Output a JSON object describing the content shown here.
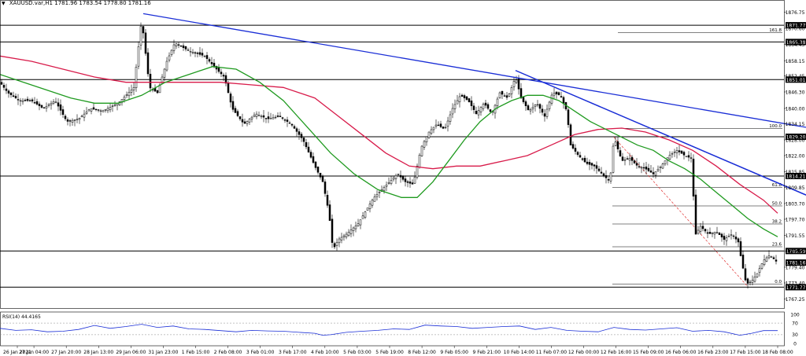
{
  "header": {
    "symbol": "XAUUSD.var,H1",
    "ohlc": "1781.96 1783.54 1778.80 1781.16"
  },
  "chart_data": {
    "type": "candlestick",
    "ylim": [
      1765.0,
      1879.0
    ],
    "price_ticks": [
      "1876.75",
      "1870.60",
      "1864.45",
      "1858.15",
      "1852.45",
      "1846.30",
      "1840.00",
      "1834.15",
      "1828.00",
      "1822.00",
      "1815.85",
      "1809.85",
      "1803.70",
      "1797.70",
      "1791.55",
      "1785.59",
      "1779.40",
      "1773.40",
      "1767.25"
    ],
    "time_labels": [
      "26 Jan 2021",
      "27 Jan 04:00",
      "27 Jan 20:00",
      "28 Jan 13:00",
      "29 Jan 06:00",
      "31 Jan 23:00",
      "1 Feb 15:00",
      "2 Feb 08:00",
      "3 Feb 01:00",
      "3 Feb 17:00",
      "4 Feb 10:00",
      "5 Feb 03:00",
      "5 Feb 19:00",
      "8 Feb 12:00",
      "9 Feb 05:00",
      "9 Feb 21:00",
      "10 Feb 14:00",
      "11 Feb 07:00",
      "12 Feb 00:00",
      "12 Feb 16:00",
      "15 Feb 09:00",
      "16 Feb 06:00",
      "16 Feb 23:00",
      "17 Feb 15:00",
      "18 Feb 08:00"
    ],
    "levels": [
      {
        "label": "1871.77",
        "price": 1871.77
      },
      {
        "label": "1865.38",
        "price": 1865.38
      },
      {
        "label": "1851.01",
        "price": 1851.01
      },
      {
        "label": "1829.20",
        "price": 1829.2
      },
      {
        "label": "1814.21",
        "price": 1814.21
      },
      {
        "label": "1785.59",
        "price": 1785.59
      },
      {
        "label": "1771.77",
        "price": 1771.77
      }
    ],
    "current_price_label": "1781.16",
    "current_price": 1781.16,
    "fibonacci": [
      {
        "label": "161.8",
        "price": 1868.9
      },
      {
        "label": "100.0",
        "price": 1832.4
      },
      {
        "label": "61.8",
        "price": 1809.8
      },
      {
        "label": "50.0",
        "price": 1802.8
      },
      {
        "label": "38.2",
        "price": 1795.9
      },
      {
        "label": "23.6",
        "price": 1787.2
      },
      {
        "label": "0.0",
        "price": 1773.0
      }
    ],
    "close_path": [
      [
        0,
        1850
      ],
      [
        10,
        1846
      ],
      [
        25,
        1843
      ],
      [
        40,
        1843
      ],
      [
        55,
        1840
      ],
      [
        70,
        1843
      ],
      [
        85,
        1835
      ],
      [
        100,
        1836
      ],
      [
        115,
        1840
      ],
      [
        130,
        1839
      ],
      [
        150,
        1842
      ],
      [
        170,
        1848
      ],
      [
        180,
        1874
      ],
      [
        190,
        1848
      ],
      [
        200,
        1846
      ],
      [
        212,
        1858
      ],
      [
        222,
        1865
      ],
      [
        240,
        1862
      ],
      [
        260,
        1860
      ],
      [
        275,
        1855
      ],
      [
        285,
        1852
      ],
      [
        295,
        1840
      ],
      [
        310,
        1834
      ],
      [
        325,
        1838
      ],
      [
        340,
        1836
      ],
      [
        355,
        1837
      ],
      [
        370,
        1834
      ],
      [
        385,
        1828
      ],
      [
        400,
        1818
      ],
      [
        410,
        1812
      ],
      [
        418,
        1800
      ],
      [
        423,
        1786
      ],
      [
        430,
        1790
      ],
      [
        440,
        1792
      ],
      [
        455,
        1796
      ],
      [
        465,
        1801
      ],
      [
        475,
        1806
      ],
      [
        485,
        1809
      ],
      [
        495,
        1812
      ],
      [
        505,
        1815
      ],
      [
        515,
        1812
      ],
      [
        525,
        1811
      ],
      [
        535,
        1825
      ],
      [
        545,
        1831
      ],
      [
        555,
        1834
      ],
      [
        565,
        1832
      ],
      [
        575,
        1840
      ],
      [
        585,
        1845
      ],
      [
        595,
        1843
      ],
      [
        605,
        1838
      ],
      [
        615,
        1842
      ],
      [
        625,
        1838
      ],
      [
        635,
        1846
      ],
      [
        645,
        1844
      ],
      [
        655,
        1852
      ],
      [
        662,
        1844
      ],
      [
        672,
        1839
      ],
      [
        682,
        1842
      ],
      [
        692,
        1837
      ],
      [
        702,
        1846
      ],
      [
        712,
        1845
      ],
      [
        720,
        1839
      ],
      [
        725,
        1826
      ],
      [
        735,
        1822
      ],
      [
        745,
        1819
      ],
      [
        755,
        1818
      ],
      [
        765,
        1815
      ],
      [
        775,
        1812
      ],
      [
        780,
        1829
      ],
      [
        790,
        1820
      ],
      [
        800,
        1821
      ],
      [
        810,
        1818
      ],
      [
        820,
        1817
      ],
      [
        830,
        1815
      ],
      [
        840,
        1818
      ],
      [
        850,
        1822
      ],
      [
        860,
        1824
      ],
      [
        870,
        1822
      ],
      [
        878,
        1821
      ],
      [
        884,
        1792
      ],
      [
        890,
        1795
      ],
      [
        900,
        1792
      ],
      [
        910,
        1793
      ],
      [
        920,
        1790
      ],
      [
        930,
        1792
      ],
      [
        938,
        1789
      ],
      [
        942,
        1782
      ],
      [
        948,
        1773
      ],
      [
        955,
        1774
      ],
      [
        962,
        1777
      ],
      [
        970,
        1782
      ],
      [
        978,
        1784
      ],
      [
        985,
        1782
      ],
      [
        988,
        1781
      ]
    ],
    "ma_red": [
      [
        0,
        1860
      ],
      [
        40,
        1858
      ],
      [
        80,
        1855
      ],
      [
        120,
        1852
      ],
      [
        160,
        1850
      ],
      [
        200,
        1850
      ],
      [
        240,
        1850
      ],
      [
        280,
        1850
      ],
      [
        320,
        1849
      ],
      [
        360,
        1848
      ],
      [
        400,
        1844
      ],
      [
        430,
        1837
      ],
      [
        460,
        1830
      ],
      [
        490,
        1823
      ],
      [
        520,
        1818
      ],
      [
        550,
        1817
      ],
      [
        580,
        1818
      ],
      [
        610,
        1818
      ],
      [
        640,
        1820
      ],
      [
        670,
        1822
      ],
      [
        700,
        1826
      ],
      [
        730,
        1830
      ],
      [
        760,
        1832
      ],
      [
        790,
        1832.5
      ],
      [
        820,
        1831
      ],
      [
        850,
        1828
      ],
      [
        880,
        1824
      ],
      [
        910,
        1818
      ],
      [
        940,
        1811
      ],
      [
        970,
        1805
      ],
      [
        988,
        1800
      ]
    ],
    "ma_green": [
      [
        0,
        1853
      ],
      [
        30,
        1850
      ],
      [
        60,
        1847
      ],
      [
        90,
        1844
      ],
      [
        120,
        1842
      ],
      [
        150,
        1842
      ],
      [
        180,
        1845
      ],
      [
        210,
        1850
      ],
      [
        240,
        1853
      ],
      [
        270,
        1856
      ],
      [
        300,
        1855
      ],
      [
        330,
        1850
      ],
      [
        360,
        1843
      ],
      [
        390,
        1833
      ],
      [
        420,
        1823
      ],
      [
        450,
        1815
      ],
      [
        480,
        1809
      ],
      [
        510,
        1806
      ],
      [
        530,
        1806
      ],
      [
        550,
        1812
      ],
      [
        570,
        1820
      ],
      [
        590,
        1828
      ],
      [
        610,
        1835
      ],
      [
        630,
        1840
      ],
      [
        650,
        1843
      ],
      [
        670,
        1845
      ],
      [
        690,
        1845
      ],
      [
        710,
        1843
      ],
      [
        730,
        1839
      ],
      [
        750,
        1835
      ],
      [
        770,
        1832
      ],
      [
        790,
        1829
      ],
      [
        810,
        1826
      ],
      [
        830,
        1824
      ],
      [
        850,
        1820
      ],
      [
        870,
        1817
      ],
      [
        890,
        1813
      ],
      [
        910,
        1808
      ],
      [
        930,
        1803
      ],
      [
        950,
        1798
      ],
      [
        970,
        1794
      ],
      [
        988,
        1791
      ]
    ],
    "trendlines": [
      {
        "from": [
          182,
          1876.2
        ],
        "to": [
          1024,
          1832.8
        ]
      },
      {
        "from": [
          655,
          1854.5
        ],
        "to": [
          1024,
          1806.9
        ]
      },
      {
        "from": [
          655,
          1854.5
        ],
        "to": [
          1024,
          1807.0
        ]
      }
    ],
    "fib_dashed": {
      "from": [
        780,
        1829
      ],
      "to": [
        950,
        1772
      ]
    },
    "rsi": {
      "label": "RSI(14) 44.4165",
      "value": 44.4165,
      "ticks": [
        "100",
        "70",
        "30",
        "0"
      ],
      "path": [
        [
          0,
          52
        ],
        [
          20,
          45
        ],
        [
          40,
          47
        ],
        [
          60,
          40
        ],
        [
          80,
          42
        ],
        [
          100,
          48
        ],
        [
          120,
          62
        ],
        [
          140,
          52
        ],
        [
          160,
          58
        ],
        [
          180,
          66
        ],
        [
          200,
          55
        ],
        [
          220,
          60
        ],
        [
          240,
          50
        ],
        [
          260,
          48
        ],
        [
          280,
          44
        ],
        [
          300,
          40
        ],
        [
          320,
          45
        ],
        [
          340,
          43
        ],
        [
          360,
          42
        ],
        [
          380,
          38
        ],
        [
          400,
          35
        ],
        [
          410,
          28
        ],
        [
          420,
          30
        ],
        [
          440,
          38
        ],
        [
          460,
          42
        ],
        [
          480,
          45
        ],
        [
          500,
          50
        ],
        [
          520,
          48
        ],
        [
          540,
          63
        ],
        [
          560,
          60
        ],
        [
          580,
          58
        ],
        [
          600,
          52
        ],
        [
          620,
          55
        ],
        [
          640,
          58
        ],
        [
          660,
          60
        ],
        [
          680,
          48
        ],
        [
          700,
          55
        ],
        [
          720,
          45
        ],
        [
          740,
          42
        ],
        [
          760,
          40
        ],
        [
          780,
          55
        ],
        [
          800,
          48
        ],
        [
          820,
          46
        ],
        [
          840,
          50
        ],
        [
          860,
          54
        ],
        [
          880,
          42
        ],
        [
          900,
          45
        ],
        [
          920,
          40
        ],
        [
          940,
          28
        ],
        [
          955,
          35
        ],
        [
          970,
          44
        ],
        [
          988,
          44
        ]
      ]
    }
  }
}
